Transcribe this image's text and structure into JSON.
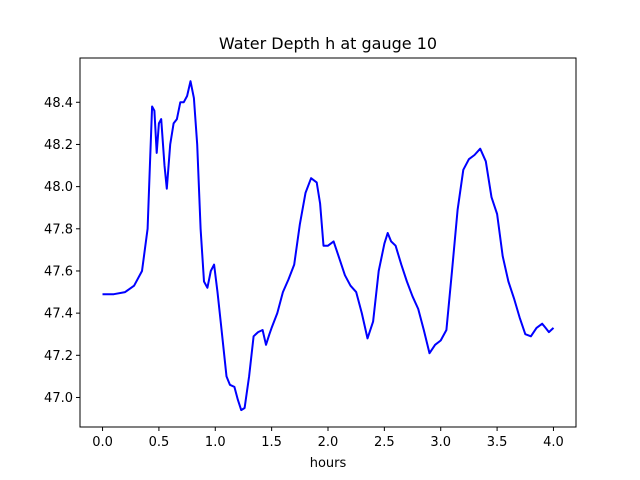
{
  "chart_data": {
    "type": "line",
    "title": "Water Depth h at gauge 10",
    "xlabel": "hours",
    "ylabel": "",
    "xlim": [
      -0.2,
      4.2
    ],
    "ylim": [
      46.86,
      48.61
    ],
    "grid": false,
    "xticks": [
      "0.0",
      "0.5",
      "1.0",
      "1.5",
      "2.0",
      "2.5",
      "3.0",
      "3.5",
      "4.0"
    ],
    "xtick_values": [
      0.0,
      0.5,
      1.0,
      1.5,
      2.0,
      2.5,
      3.0,
      3.5,
      4.0
    ],
    "yticks": [
      "47.0",
      "47.2",
      "47.4",
      "47.6",
      "47.8",
      "48.0",
      "48.2",
      "48.4"
    ],
    "ytick_values": [
      47.0,
      47.2,
      47.4,
      47.6,
      47.8,
      48.0,
      48.2,
      48.4
    ],
    "colors": {
      "line": "#0000ff"
    },
    "series": [
      {
        "x": [
          0.0,
          0.1,
          0.2,
          0.28,
          0.35,
          0.4,
          0.42,
          0.44,
          0.46,
          0.48,
          0.5,
          0.52,
          0.55,
          0.57,
          0.6,
          0.63,
          0.66,
          0.69,
          0.72,
          0.75,
          0.78,
          0.81,
          0.84,
          0.87,
          0.9,
          0.93,
          0.96,
          0.99,
          1.02,
          1.05,
          1.1,
          1.13,
          1.17,
          1.2,
          1.23,
          1.26,
          1.3,
          1.34,
          1.38,
          1.42,
          1.45,
          1.48,
          1.5,
          1.55,
          1.6,
          1.65,
          1.7,
          1.75,
          1.8,
          1.85,
          1.9,
          1.93,
          1.96,
          2.0,
          2.05,
          2.1,
          2.15,
          2.2,
          2.25,
          2.3,
          2.35,
          2.4,
          2.45,
          2.5,
          2.53,
          2.56,
          2.6,
          2.65,
          2.7,
          2.75,
          2.8,
          2.85,
          2.9,
          2.95,
          3.0,
          3.05,
          3.1,
          3.15,
          3.2,
          3.25,
          3.3,
          3.35,
          3.4,
          3.45,
          3.5,
          3.55,
          3.6,
          3.65,
          3.7,
          3.75,
          3.8,
          3.85,
          3.9,
          3.93,
          3.96,
          4.0
        ],
        "y": [
          47.49,
          47.49,
          47.5,
          47.53,
          47.6,
          47.8,
          48.1,
          48.38,
          48.36,
          48.16,
          48.3,
          48.32,
          48.1,
          47.99,
          48.2,
          48.3,
          48.32,
          48.4,
          48.4,
          48.43,
          48.5,
          48.42,
          48.2,
          47.8,
          47.55,
          47.52,
          47.6,
          47.63,
          47.5,
          47.35,
          47.1,
          47.06,
          47.05,
          46.99,
          46.94,
          46.95,
          47.1,
          47.29,
          47.31,
          47.32,
          47.25,
          47.3,
          47.33,
          47.4,
          47.5,
          47.56,
          47.63,
          47.82,
          47.97,
          48.04,
          48.02,
          47.92,
          47.72,
          47.72,
          47.74,
          47.66,
          47.58,
          47.53,
          47.5,
          47.4,
          47.28,
          47.36,
          47.6,
          47.73,
          47.78,
          47.74,
          47.72,
          47.63,
          47.55,
          47.48,
          47.42,
          47.32,
          47.21,
          47.25,
          47.27,
          47.32,
          47.6,
          47.89,
          48.08,
          48.13,
          48.15,
          48.18,
          48.12,
          47.95,
          47.87,
          47.67,
          47.55,
          47.47,
          47.38,
          47.3,
          47.29,
          47.33,
          47.35,
          47.33,
          47.31,
          47.33
        ]
      }
    ]
  }
}
